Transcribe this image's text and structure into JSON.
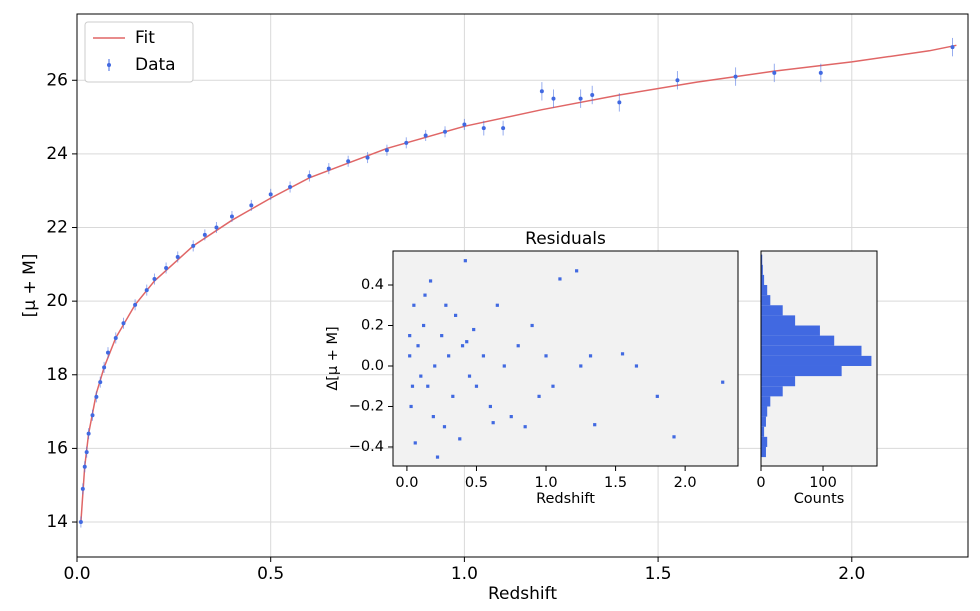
{
  "chart_data": [
    {
      "type": "line",
      "xlabel": "Redshift",
      "ylabel": "[μ + M]",
      "xlim": [
        0,
        2.3
      ],
      "ylim": [
        13.05,
        27.8
      ],
      "xticks": [
        {
          "value": 0,
          "label": "0.0"
        },
        0.5,
        {
          "value": 1,
          "label": "1.0"
        },
        1.5,
        {
          "value": 2,
          "label": "2.0"
        }
      ],
      "yticks": [
        14,
        16,
        18,
        20,
        22,
        24,
        26
      ],
      "grid": true,
      "legend": "upper left",
      "series": [
        {
          "name": "Fit",
          "color": "#e06666",
          "kind": "line",
          "x": [
            0.01,
            0.02,
            0.03,
            0.05,
            0.07,
            0.1,
            0.15,
            0.2,
            0.3,
            0.4,
            0.5,
            0.6,
            0.7,
            0.8,
            1.0,
            1.2,
            1.4,
            1.6,
            1.8,
            2.0,
            2.2,
            2.27
          ],
          "values": [
            14.0,
            15.5,
            16.4,
            17.5,
            18.2,
            19.0,
            19.9,
            20.55,
            21.5,
            22.2,
            22.8,
            23.35,
            23.75,
            24.15,
            24.75,
            25.2,
            25.6,
            25.95,
            26.25,
            26.5,
            26.8,
            26.95
          ]
        },
        {
          "name": "Data",
          "color": "#4169e1",
          "kind": "errorbar",
          "x": [
            0.01,
            0.015,
            0.02,
            0.025,
            0.03,
            0.04,
            0.05,
            0.06,
            0.07,
            0.08,
            0.1,
            0.12,
            0.15,
            0.18,
            0.2,
            0.23,
            0.26,
            0.3,
            0.33,
            0.36,
            0.4,
            0.45,
            0.5,
            0.55,
            0.6,
            0.65,
            0.7,
            0.75,
            0.8,
            0.85,
            0.9,
            0.95,
            1.0,
            1.05,
            1.1,
            1.2,
            1.23,
            1.3,
            1.33,
            1.4,
            1.55,
            1.7,
            1.8,
            1.92,
            2.26
          ],
          "values": [
            14.0,
            14.9,
            15.5,
            15.9,
            16.4,
            16.9,
            17.4,
            17.8,
            18.2,
            18.6,
            19.0,
            19.4,
            19.9,
            20.3,
            20.6,
            20.9,
            21.2,
            21.5,
            21.8,
            22.0,
            22.3,
            22.6,
            22.9,
            23.1,
            23.4,
            23.6,
            23.8,
            23.9,
            24.1,
            24.3,
            24.5,
            24.6,
            24.8,
            24.7,
            24.7,
            25.7,
            25.5,
            25.5,
            25.6,
            25.4,
            26.0,
            26.1,
            26.2,
            26.2,
            26.9
          ],
          "errors": [
            0.15,
            0.15,
            0.15,
            0.15,
            0.15,
            0.15,
            0.15,
            0.15,
            0.15,
            0.15,
            0.15,
            0.15,
            0.15,
            0.15,
            0.15,
            0.15,
            0.15,
            0.15,
            0.15,
            0.15,
            0.15,
            0.15,
            0.15,
            0.15,
            0.15,
            0.15,
            0.15,
            0.15,
            0.15,
            0.15,
            0.15,
            0.15,
            0.15,
            0.2,
            0.2,
            0.25,
            0.25,
            0.25,
            0.25,
            0.25,
            0.25,
            0.25,
            0.25,
            0.25,
            0.25
          ]
        }
      ]
    },
    {
      "type": "scatter",
      "title": "Residuals",
      "xlabel": "Redshift",
      "ylabel": "Δ[μ + M]",
      "xlim": [
        -0.1,
        2.38
      ],
      "ylim": [
        -0.494,
        0.568
      ],
      "xticks": [
        {
          "value": 0,
          "label": "0.0"
        },
        0.5,
        {
          "value": 1,
          "label": "1.0"
        },
        1.5,
        {
          "value": 2,
          "label": "2.0"
        }
      ],
      "yticks": [
        {
          "value": -0.4,
          "label": "−0.4"
        },
        {
          "value": -0.2,
          "label": "−0.2"
        },
        {
          "value": 0,
          "label": "0.0"
        },
        0.2,
        0.4
      ],
      "color": "#4169e1",
      "x": [
        0.02,
        0.03,
        0.05,
        0.06,
        0.08,
        0.1,
        0.12,
        0.15,
        0.17,
        0.2,
        0.22,
        0.25,
        0.27,
        0.3,
        0.33,
        0.35,
        0.38,
        0.4,
        0.42,
        0.45,
        0.48,
        0.5,
        0.55,
        0.6,
        0.65,
        0.7,
        0.75,
        0.8,
        0.85,
        0.9,
        0.95,
        1.0,
        1.05,
        1.1,
        1.22,
        1.25,
        1.32,
        1.35,
        1.55,
        1.65,
        1.8,
        1.92,
        2.27,
        0.04,
        0.13,
        0.19,
        0.28,
        0.43,
        0.62,
        0.02
      ],
      "values": [
        0.05,
        -0.2,
        0.3,
        -0.38,
        0.1,
        -0.05,
        0.2,
        -0.1,
        0.42,
        0.0,
        -0.45,
        0.15,
        -0.3,
        0.05,
        -0.15,
        0.25,
        -0.36,
        0.1,
        0.52,
        -0.05,
        0.18,
        -0.1,
        0.05,
        -0.2,
        0.3,
        0.0,
        -0.25,
        0.1,
        -0.3,
        0.2,
        -0.15,
        0.05,
        -0.1,
        0.43,
        0.47,
        0.0,
        0.05,
        -0.29,
        0.06,
        0.0,
        -0.15,
        -0.35,
        -0.08,
        -0.1,
        0.35,
        -0.25,
        0.3,
        0.12,
        -0.28,
        0.15
      ]
    },
    {
      "type": "histogram",
      "orientation": "horizontal",
      "xlabel": "Counts",
      "xlim": [
        0,
        187
      ],
      "ylim": [
        -0.494,
        0.568
      ],
      "xticks": [
        0,
        100
      ],
      "color": "#4169e1",
      "bins": [
        -0.45,
        -0.4,
        -0.35,
        -0.3,
        -0.25,
        -0.2,
        -0.15,
        -0.1,
        -0.05,
        0.0,
        0.05,
        0.1,
        0.15,
        0.2,
        0.25,
        0.3,
        0.35,
        0.4,
        0.45,
        0.5,
        0.55
      ],
      "counts": [
        8,
        10,
        5,
        8,
        10,
        15,
        35,
        55,
        130,
        178,
        162,
        118,
        95,
        55,
        35,
        15,
        10,
        5,
        3,
        2
      ]
    }
  ]
}
